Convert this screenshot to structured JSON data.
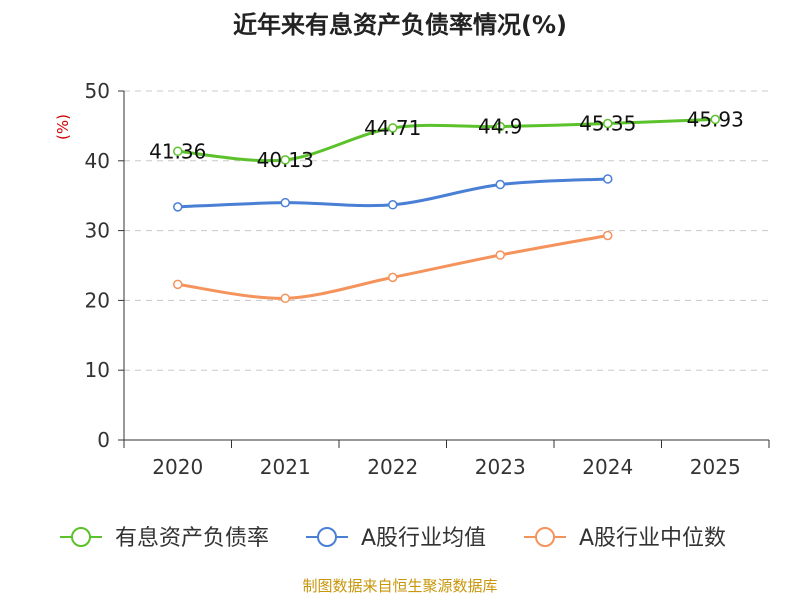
{
  "chart_data": {
    "type": "line",
    "title": "近年来有息资产负债率情况(%)",
    "ylabel": "(%)",
    "xlabel": "",
    "categories": [
      "2020",
      "2021",
      "2022",
      "2023",
      "2024",
      "2025"
    ],
    "ylim": [
      0,
      50
    ],
    "yticks": [
      0,
      10,
      20,
      30,
      40,
      50
    ],
    "grid": true,
    "legend_position": "bottom",
    "series": [
      {
        "name": "有息资产负债率",
        "color": "#5cc22c",
        "values": [
          41.36,
          40.13,
          44.71,
          44.9,
          45.35,
          45.93
        ],
        "labels": [
          "41.36",
          "40.13",
          "44.71",
          "44.9",
          "45.35",
          "45.93"
        ]
      },
      {
        "name": "A股行业均值",
        "color": "#4a7fd6",
        "values": [
          33.4,
          34.0,
          33.7,
          36.6,
          37.4,
          null
        ]
      },
      {
        "name": "A股行业中位数",
        "color": "#f5935c",
        "values": [
          22.3,
          20.3,
          23.3,
          26.5,
          29.3,
          null
        ]
      }
    ]
  },
  "footer": {
    "source": "制图数据来自恒生聚源数据库"
  }
}
